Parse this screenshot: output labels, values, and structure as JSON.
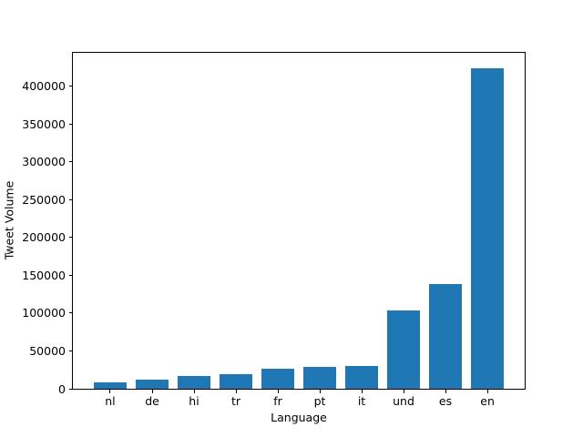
{
  "figure": {
    "background": "#ffffff",
    "text_color": "#000000"
  },
  "chart_data": {
    "type": "bar",
    "xlabel": "Language",
    "ylabel": "Tweet Volume",
    "categories": [
      "nl",
      "de",
      "hi",
      "tr",
      "fr",
      "pt",
      "it",
      "und",
      "es",
      "en"
    ],
    "values": [
      9000,
      12500,
      17000,
      19500,
      27000,
      29500,
      30500,
      103500,
      139000,
      424000
    ],
    "bar_color": "#1f77b4",
    "ylim": [
      0,
      444700
    ],
    "xlim": [
      -0.89,
      9.89
    ],
    "bar_width": 0.8,
    "yticks": [
      0,
      50000,
      100000,
      150000,
      200000,
      250000,
      300000,
      350000,
      400000
    ],
    "ytick_labels": [
      "0",
      "50000",
      "100000",
      "150000",
      "200000",
      "250000",
      "300000",
      "350000",
      "400000"
    ],
    "grid": false,
    "legend": "none"
  }
}
